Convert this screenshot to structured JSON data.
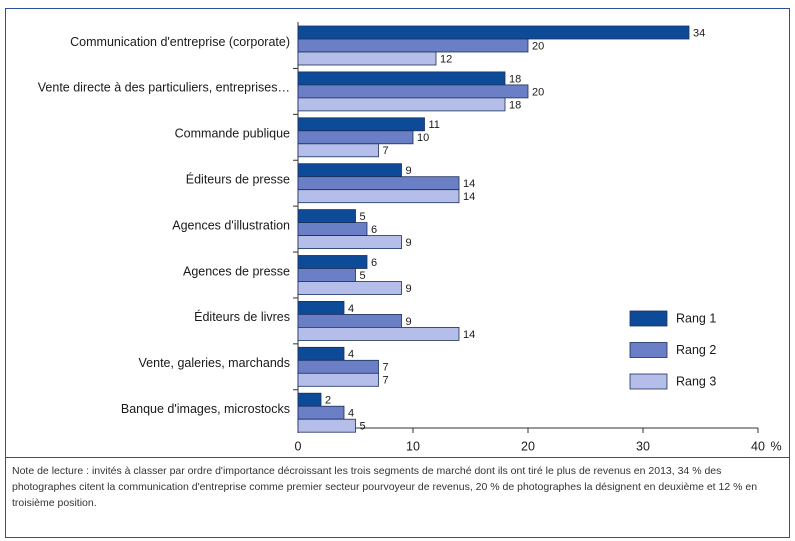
{
  "chart_data": {
    "type": "bar",
    "orientation": "horizontal",
    "categories": [
      "Communication d'entreprise (corporate)",
      "Vente directe à des particuliers, entreprises…",
      "Commande publique",
      "Éditeurs de presse",
      "Agences d'illustration",
      "Agences de presse",
      "Éditeurs de livres",
      "Vente, galeries, marchands",
      "Banque d'images, microstocks"
    ],
    "series": [
      {
        "name": "Rang 1",
        "color": "#0d4b98",
        "values": [
          34,
          18,
          11,
          9,
          5,
          6,
          4,
          4,
          2
        ]
      },
      {
        "name": "Rang 2",
        "color": "#6b7fc6",
        "values": [
          20,
          20,
          10,
          14,
          6,
          5,
          9,
          7,
          4
        ]
      },
      {
        "name": "Rang 3",
        "color": "#b4bee8",
        "values": [
          12,
          18,
          7,
          14,
          9,
          9,
          14,
          7,
          5
        ]
      }
    ],
    "xlim": [
      0,
      40
    ],
    "xticks": [
      0,
      10,
      20,
      30,
      40
    ],
    "x_unit": "%",
    "legend": "lower right",
    "grid": false,
    "note": "Note de lecture : invités à classer par ordre d'importance décroissant les trois segments de marché dont ils ont tiré le plus de revenus en 2013, 34 % des photographes citent la communication d'entreprise comme premier secteur pourvoyeur de revenus, 20 % de photographes la désignent en deuxième et 12 % en troisième position."
  }
}
